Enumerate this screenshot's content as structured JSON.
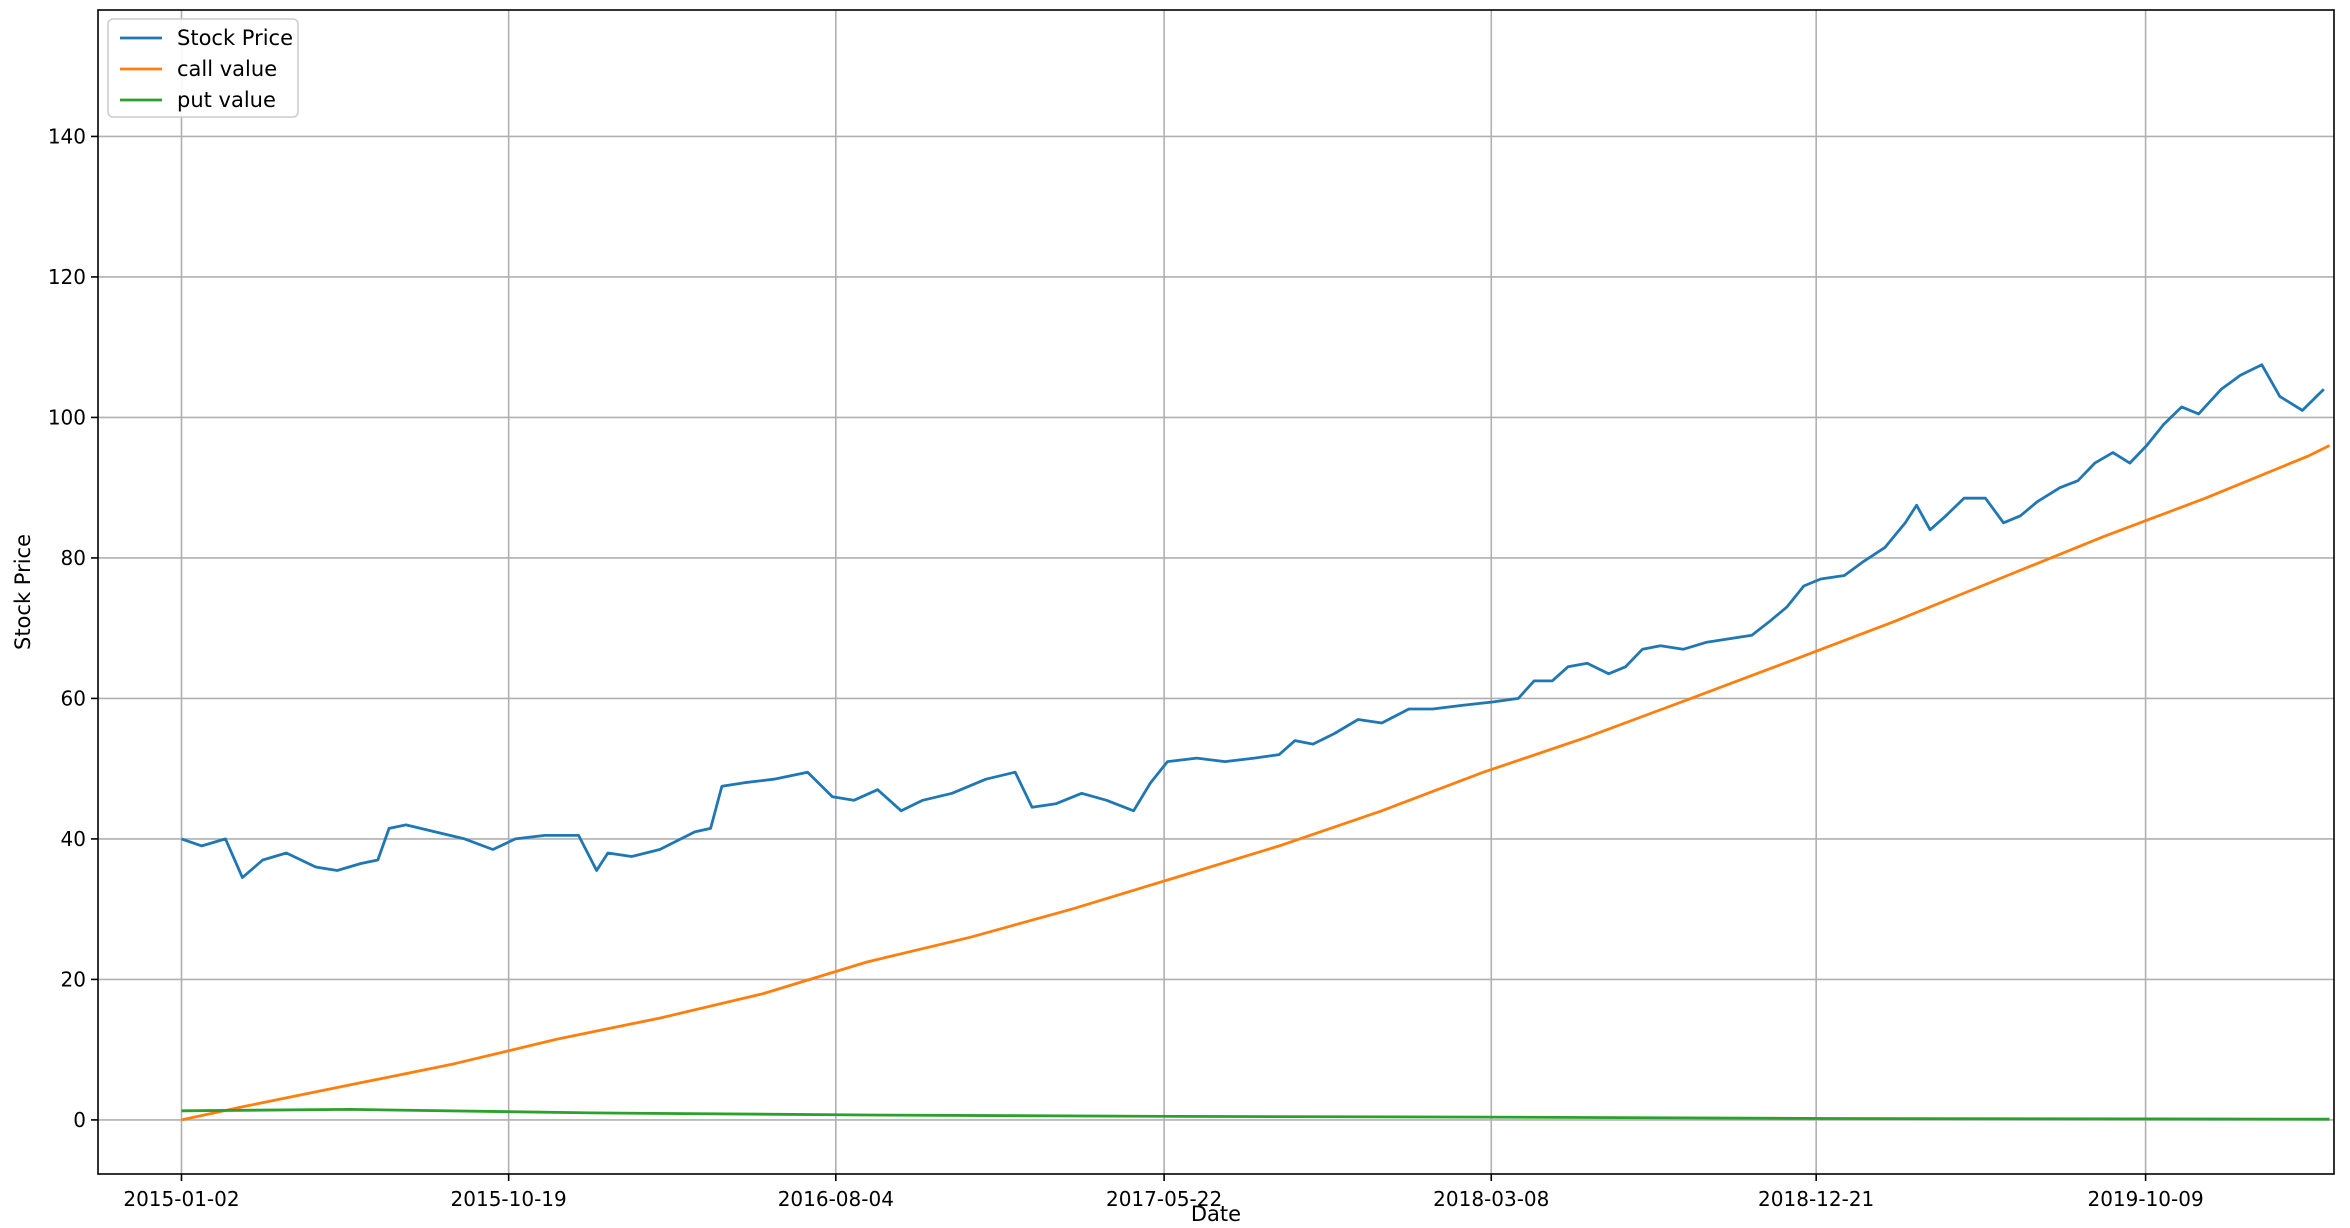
{
  "chart_data": {
    "type": "line",
    "xlabel": "Date",
    "ylabel": "Stock Price",
    "x_tick_labels": [
      "2015-01-02",
      "2015-10-19",
      "2016-08-04",
      "2017-05-22",
      "2018-03-08",
      "2018-12-21",
      "2019-10-09"
    ],
    "y_ticks": [
      0,
      20,
      40,
      60,
      80,
      100,
      120,
      140
    ],
    "xlim": [
      "2014-10-20",
      "2020-03-24"
    ],
    "ylim": [
      -7.7,
      158
    ],
    "grid": true,
    "legend_position": "top-left",
    "series": [
      {
        "name": "Stock Price",
        "color": "#1f77b4",
        "points": [
          [
            "2015-01-02",
            40
          ],
          [
            "2015-01-20",
            39
          ],
          [
            "2015-02-10",
            40
          ],
          [
            "2015-02-25",
            34.5
          ],
          [
            "2015-03-15",
            37
          ],
          [
            "2015-04-05",
            38
          ],
          [
            "2015-05-01",
            36
          ],
          [
            "2015-05-20",
            35.5
          ],
          [
            "2015-06-10",
            36.5
          ],
          [
            "2015-06-25",
            37
          ],
          [
            "2015-07-05",
            41.5
          ],
          [
            "2015-07-20",
            42
          ],
          [
            "2015-08-15",
            41
          ],
          [
            "2015-09-10",
            40
          ],
          [
            "2015-10-05",
            38.5
          ],
          [
            "2015-10-25",
            40
          ],
          [
            "2015-11-20",
            40.5
          ],
          [
            "2015-12-20",
            40.5
          ],
          [
            "2016-01-05",
            35.5
          ],
          [
            "2016-01-15",
            38
          ],
          [
            "2016-02-05",
            37.5
          ],
          [
            "2016-03-01",
            38.5
          ],
          [
            "2016-04-01",
            41
          ],
          [
            "2016-04-15",
            41.5
          ],
          [
            "2016-04-25",
            47.5
          ],
          [
            "2016-05-15",
            48
          ],
          [
            "2016-06-10",
            48.5
          ],
          [
            "2016-07-10",
            49.5
          ],
          [
            "2016-08-01",
            46
          ],
          [
            "2016-08-20",
            45.5
          ],
          [
            "2016-09-10",
            47
          ],
          [
            "2016-10-01",
            44
          ],
          [
            "2016-10-20",
            45.5
          ],
          [
            "2016-11-15",
            46.5
          ],
          [
            "2016-12-15",
            48.5
          ],
          [
            "2017-01-10",
            49.5
          ],
          [
            "2017-01-25",
            44.5
          ],
          [
            "2017-02-15",
            45
          ],
          [
            "2017-03-10",
            46.5
          ],
          [
            "2017-04-01",
            45.5
          ],
          [
            "2017-04-25",
            44
          ],
          [
            "2017-05-10",
            48
          ],
          [
            "2017-05-25",
            51
          ],
          [
            "2017-06-20",
            51.5
          ],
          [
            "2017-07-15",
            51
          ],
          [
            "2017-08-10",
            51.5
          ],
          [
            "2017-09-01",
            52
          ],
          [
            "2017-09-15",
            54
          ],
          [
            "2017-10-01",
            53.5
          ],
          [
            "2017-10-20",
            55
          ],
          [
            "2017-11-10",
            57
          ],
          [
            "2017-12-01",
            56.5
          ],
          [
            "2017-12-25",
            58.5
          ],
          [
            "2018-01-15",
            58.5
          ],
          [
            "2018-02-10",
            59
          ],
          [
            "2018-03-10",
            59.5
          ],
          [
            "2018-04-01",
            60
          ],
          [
            "2018-04-15",
            62.5
          ],
          [
            "2018-05-01",
            62.5
          ],
          [
            "2018-05-15",
            64.5
          ],
          [
            "2018-06-01",
            65
          ],
          [
            "2018-06-20",
            63.5
          ],
          [
            "2018-07-05",
            64.5
          ],
          [
            "2018-07-20",
            67
          ],
          [
            "2018-08-05",
            67.5
          ],
          [
            "2018-08-25",
            67
          ],
          [
            "2018-09-15",
            68
          ],
          [
            "2018-10-05",
            68.5
          ],
          [
            "2018-10-25",
            69
          ],
          [
            "2018-11-10",
            71
          ],
          [
            "2018-11-25",
            73
          ],
          [
            "2018-12-10",
            76
          ],
          [
            "2018-12-25",
            77
          ],
          [
            "2019-01-15",
            77.5
          ],
          [
            "2019-02-01",
            79.5
          ],
          [
            "2019-02-20",
            81.5
          ],
          [
            "2019-03-10",
            85
          ],
          [
            "2019-03-20",
            87.5
          ],
          [
            "2019-04-01",
            84
          ],
          [
            "2019-04-15",
            86
          ],
          [
            "2019-05-01",
            88.5
          ],
          [
            "2019-05-20",
            88.5
          ],
          [
            "2019-06-05",
            85
          ],
          [
            "2019-06-20",
            86
          ],
          [
            "2019-07-05",
            88
          ],
          [
            "2019-07-25",
            90
          ],
          [
            "2019-08-10",
            91
          ],
          [
            "2019-08-25",
            93.5
          ],
          [
            "2019-09-10",
            95
          ],
          [
            "2019-09-25",
            93.5
          ],
          [
            "2019-10-10",
            96
          ],
          [
            "2019-10-25",
            99
          ],
          [
            "2019-11-10",
            101.5
          ],
          [
            "2019-11-25",
            100.5
          ],
          [
            "2019-12-15",
            104
          ],
          [
            "2020-01-01",
            106
          ],
          [
            "2020-01-20",
            107.5
          ],
          [
            "2020-02-05",
            103
          ],
          [
            "2020-02-25",
            101
          ],
          [
            "2020-03-15",
            104
          ]
        ]
      },
      {
        "name": "call value",
        "color": "#ff7f0e",
        "points": [
          [
            "2015-01-02",
            0
          ],
          [
            "2015-03-01",
            2
          ],
          [
            "2015-06-01",
            5
          ],
          [
            "2015-09-01",
            8
          ],
          [
            "2015-12-01",
            11.5
          ],
          [
            "2016-03-01",
            14.5
          ],
          [
            "2016-06-01",
            18
          ],
          [
            "2016-09-01",
            22.5
          ],
          [
            "2016-12-01",
            26
          ],
          [
            "2017-03-01",
            30
          ],
          [
            "2017-06-01",
            34.5
          ],
          [
            "2017-09-01",
            39
          ],
          [
            "2017-12-01",
            44
          ],
          [
            "2018-03-01",
            49.5
          ],
          [
            "2018-06-01",
            54.5
          ],
          [
            "2018-09-01",
            60
          ],
          [
            "2018-12-01",
            65.5
          ],
          [
            "2019-03-01",
            71
          ],
          [
            "2019-06-01",
            77
          ],
          [
            "2019-09-01",
            83
          ],
          [
            "2019-12-01",
            88.5
          ],
          [
            "2020-03-01",
            94.5
          ],
          [
            "2020-03-20",
            96
          ]
        ]
      },
      {
        "name": "put value",
        "color": "#2ca02c",
        "points": [
          [
            "2015-01-02",
            1.3
          ],
          [
            "2015-06-01",
            1.5
          ],
          [
            "2016-01-01",
            1.0
          ],
          [
            "2016-09-01",
            0.7
          ],
          [
            "2017-06-01",
            0.5
          ],
          [
            "2018-03-01",
            0.4
          ],
          [
            "2019-01-01",
            0.2
          ],
          [
            "2019-10-01",
            0.15
          ],
          [
            "2020-03-20",
            0.1
          ]
        ]
      }
    ]
  }
}
